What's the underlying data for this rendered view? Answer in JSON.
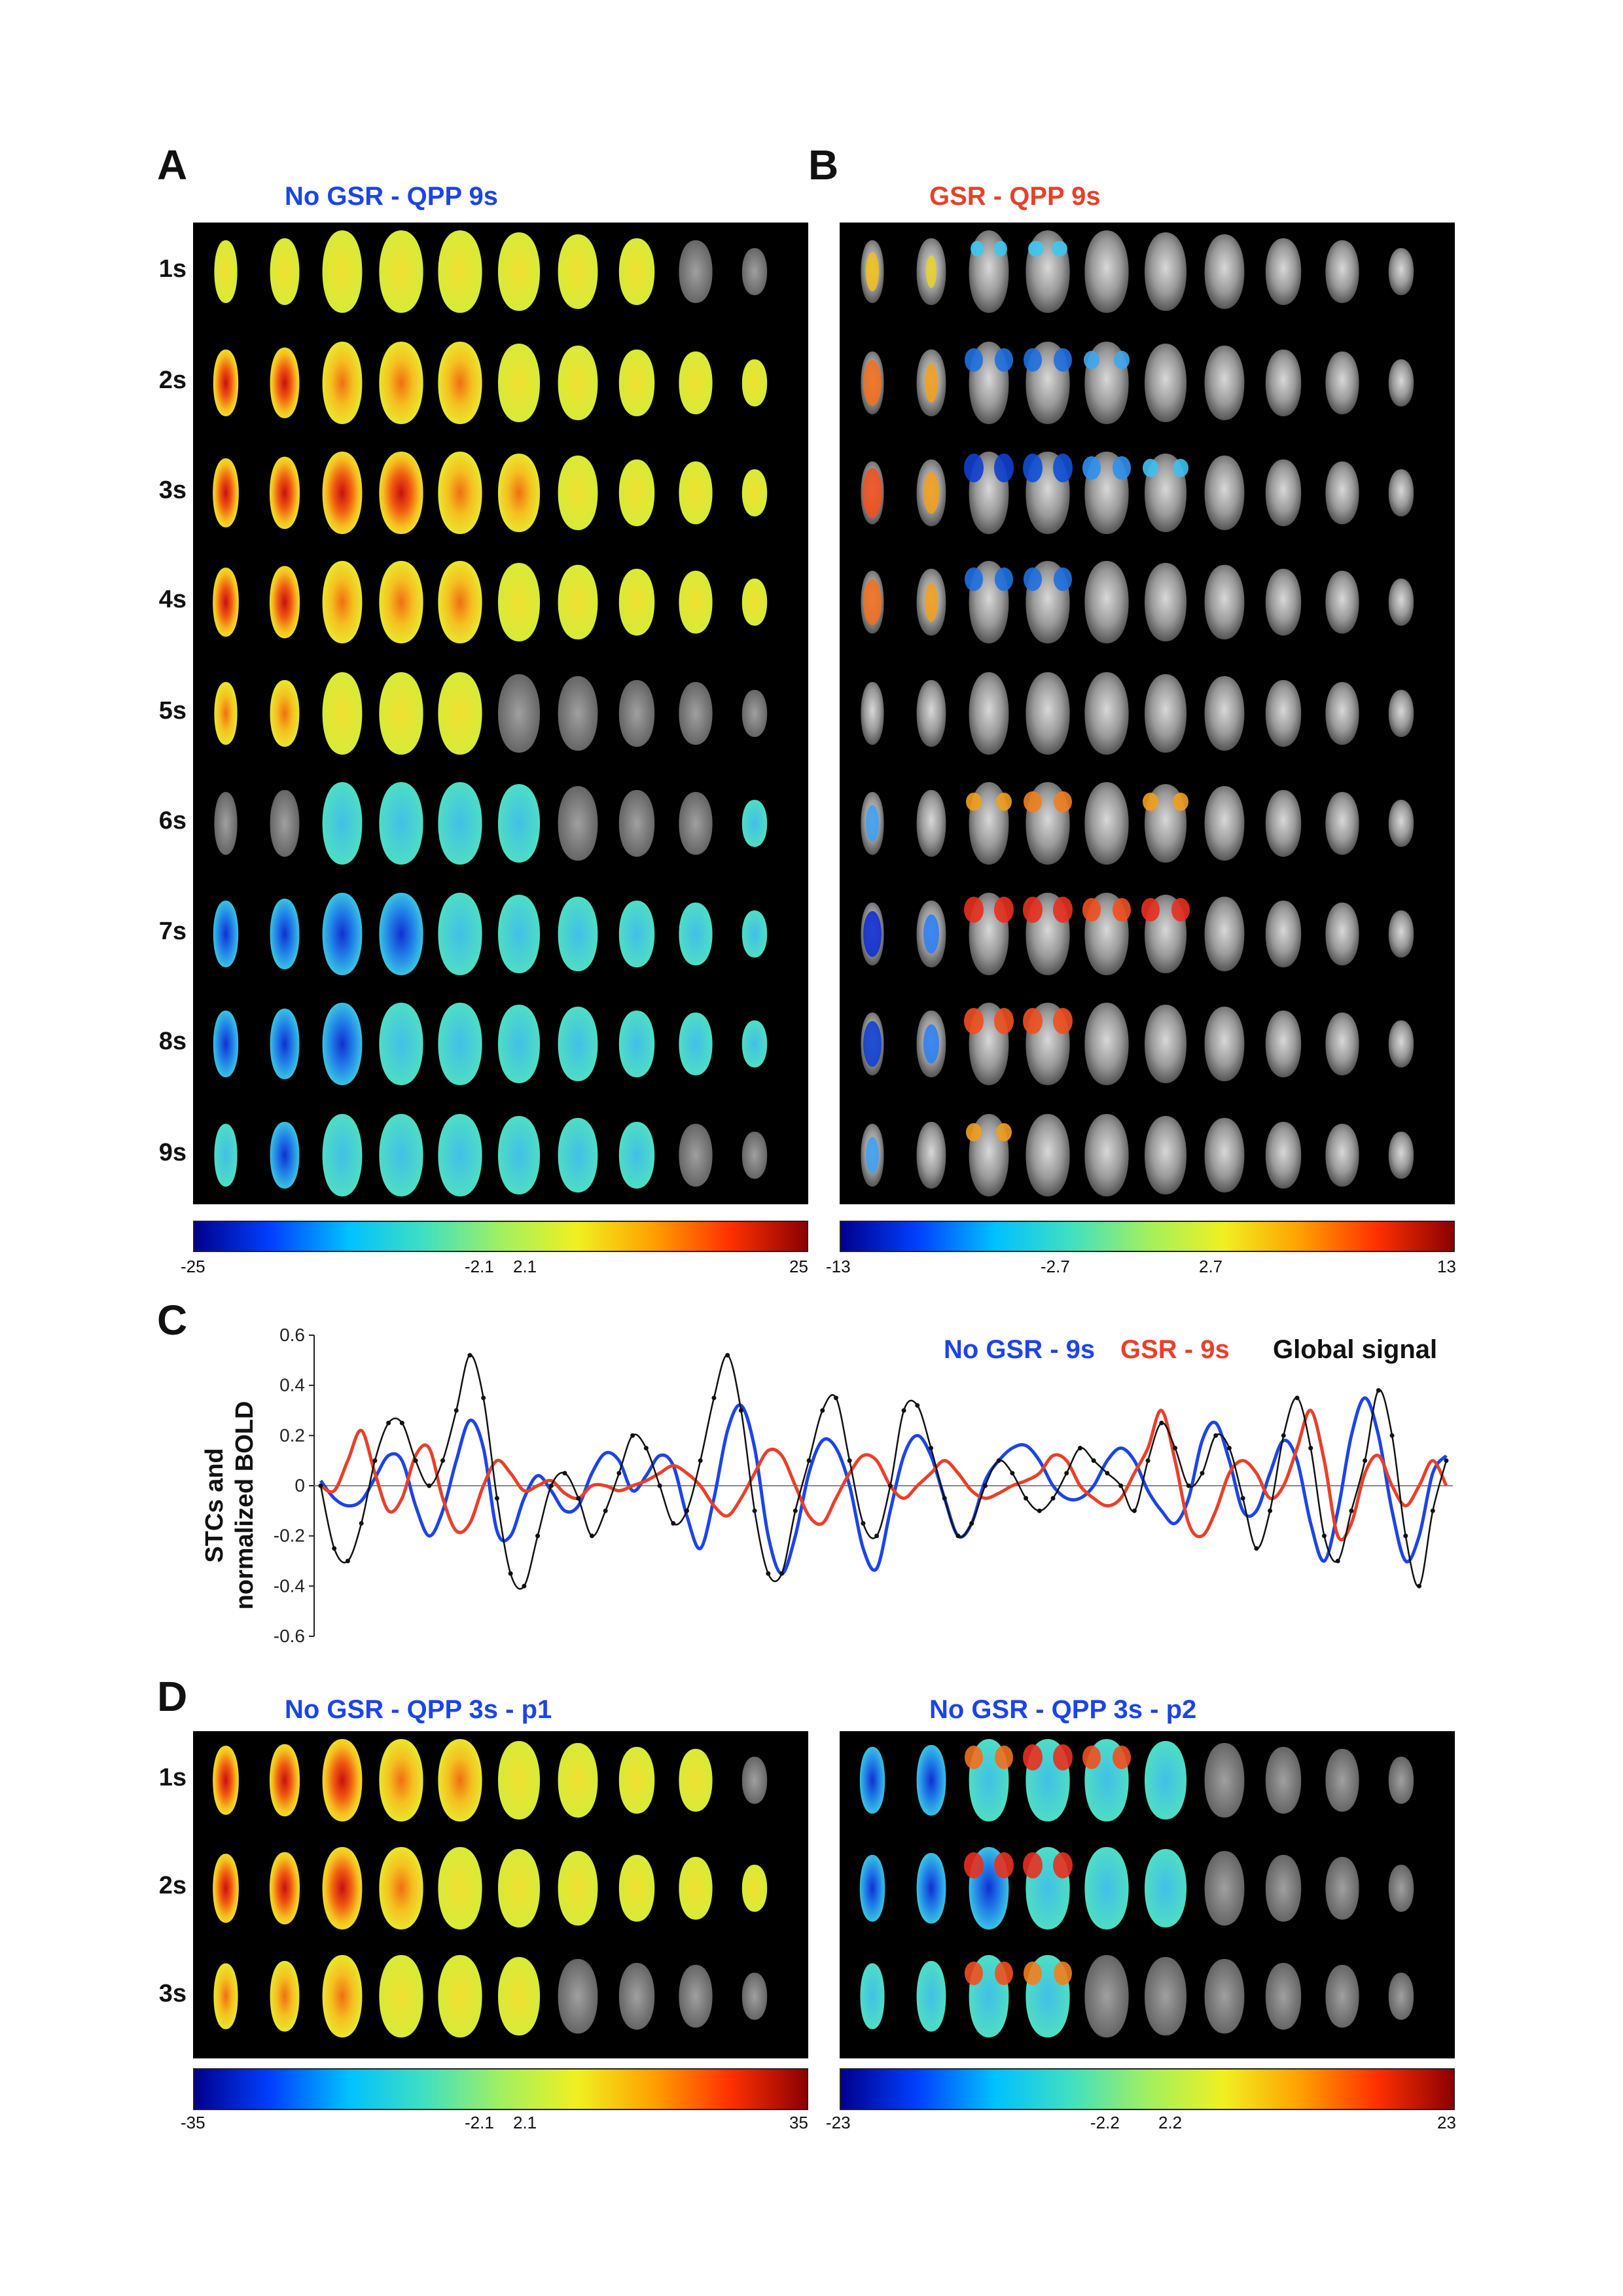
{
  "panel_a": {
    "letter": "A",
    "title": "No GSR - QPP 9s",
    "rows": [
      "1s",
      "2s",
      "3s",
      "4s",
      "5s",
      "6s",
      "7s",
      "8s",
      "9s"
    ],
    "colorbar": {
      "min": "-25",
      "neg": "-2.1",
      "pos": "2.1",
      "max": "25"
    }
  },
  "panel_b": {
    "letter": "B",
    "title": "GSR - QPP 9s",
    "colorbar": {
      "min": "-13",
      "neg": "-2.7",
      "pos": "2.7",
      "max": "13"
    }
  },
  "panel_c": {
    "letter": "C",
    "ylabel_line1": "STCs and",
    "ylabel_line2": "normalized BOLD",
    "legend": {
      "nogsr": "No GSR - 9s",
      "gsr": "GSR - 9s",
      "global": "Global signal"
    },
    "yticks": [
      "0.6",
      "0.4",
      "0.2",
      "0",
      "-0.2",
      "-0.4",
      "-0.6"
    ]
  },
  "panel_d": {
    "letter": "D",
    "title_p1": "No GSR - QPP 3s - p1",
    "title_p2": "No GSR - QPP 3s - p2",
    "rows": [
      "1s",
      "2s",
      "3s"
    ],
    "colorbar_p1": {
      "min": "-35",
      "neg": "-2.1",
      "pos": "2.1",
      "max": "35"
    },
    "colorbar_p2": {
      "min": "-23",
      "neg": "-2.2",
      "pos": "2.2",
      "max": "23"
    }
  },
  "colors": {
    "nogsr": "#1c44e6",
    "gsr": "#e8402a",
    "global": "#111111"
  },
  "chart_data": {
    "type": "line",
    "ylim": [
      -0.6,
      0.6
    ],
    "ylabel": "STCs and normalized BOLD",
    "xlabel": "",
    "series": [
      {
        "name": "No GSR - 9s",
        "values": [
          0.02,
          -0.05,
          -0.08,
          -0.06,
          0.03,
          0.12,
          0.1,
          -0.08,
          -0.2,
          -0.1,
          0.1,
          0.26,
          0.15,
          -0.18,
          -0.2,
          -0.05,
          0.04,
          -0.02,
          -0.1,
          -0.08,
          0.05,
          0.13,
          0.1,
          -0.02,
          0.04,
          0.12,
          0.08,
          -0.12,
          -0.25,
          -0.05,
          0.22,
          0.32,
          0.15,
          -0.2,
          -0.35,
          -0.2,
          0.05,
          0.18,
          0.15,
          0.0,
          -0.25,
          -0.33,
          -0.1,
          0.12,
          0.2,
          0.12,
          -0.05,
          -0.2,
          -0.15,
          0.02,
          0.1,
          0.15,
          0.16,
          0.1,
          0.0,
          -0.05,
          -0.05,
          0.0,
          0.1,
          0.15,
          0.1,
          -0.02,
          -0.1,
          -0.15,
          -0.05,
          0.18,
          0.25,
          0.1,
          -0.1,
          -0.1,
          0.05,
          0.18,
          0.1,
          -0.15,
          -0.3,
          -0.1,
          0.2,
          0.35,
          0.2,
          -0.1,
          -0.3,
          -0.2,
          0.05,
          0.12
        ]
      },
      {
        "name": "GSR - 9s",
        "values": [
          0.0,
          -0.02,
          0.1,
          0.22,
          0.05,
          -0.1,
          -0.05,
          0.12,
          0.15,
          -0.05,
          -0.18,
          -0.15,
          0.0,
          0.1,
          0.05,
          -0.02,
          0.0,
          0.02,
          -0.03,
          -0.05,
          0.0,
          0.0,
          -0.02,
          0.0,
          0.02,
          0.05,
          0.08,
          0.05,
          0.0,
          -0.08,
          -0.12,
          -0.05,
          0.05,
          0.14,
          0.12,
          0.0,
          -0.12,
          -0.15,
          -0.05,
          0.05,
          0.12,
          0.1,
          0.0,
          -0.05,
          0.0,
          0.05,
          0.1,
          0.05,
          -0.02,
          -0.05,
          -0.03,
          0.0,
          0.02,
          0.05,
          0.12,
          0.1,
          0.0,
          -0.05,
          -0.08,
          -0.05,
          0.05,
          0.15,
          0.3,
          0.1,
          -0.15,
          -0.2,
          -0.1,
          0.05,
          0.1,
          0.05,
          -0.05,
          0.0,
          0.15,
          0.3,
          0.1,
          -0.2,
          -0.15,
          0.05,
          0.12,
          0.0,
          -0.08,
          0.0,
          0.1,
          0.0
        ]
      },
      {
        "name": "Global signal",
        "values": [
          0.0,
          -0.25,
          -0.3,
          -0.15,
          0.1,
          0.25,
          0.25,
          0.1,
          0.0,
          0.1,
          0.3,
          0.52,
          0.35,
          -0.05,
          -0.35,
          -0.4,
          -0.2,
          0.0,
          0.05,
          -0.05,
          -0.2,
          -0.1,
          0.05,
          0.2,
          0.15,
          0.0,
          -0.15,
          -0.1,
          0.1,
          0.35,
          0.52,
          0.3,
          -0.1,
          -0.35,
          -0.35,
          -0.1,
          0.1,
          0.3,
          0.35,
          0.1,
          -0.15,
          -0.2,
          0.0,
          0.3,
          0.32,
          0.15,
          -0.05,
          -0.2,
          -0.15,
          0.0,
          0.1,
          0.05,
          -0.05,
          -0.1,
          -0.05,
          0.05,
          0.15,
          0.1,
          0.05,
          0.0,
          -0.1,
          0.1,
          0.25,
          0.15,
          0.0,
          0.05,
          0.2,
          0.15,
          -0.05,
          -0.25,
          -0.1,
          0.2,
          0.35,
          0.15,
          -0.2,
          -0.3,
          -0.1,
          0.1,
          0.38,
          0.2,
          -0.2,
          -0.4,
          -0.1,
          0.1
        ]
      }
    ]
  }
}
